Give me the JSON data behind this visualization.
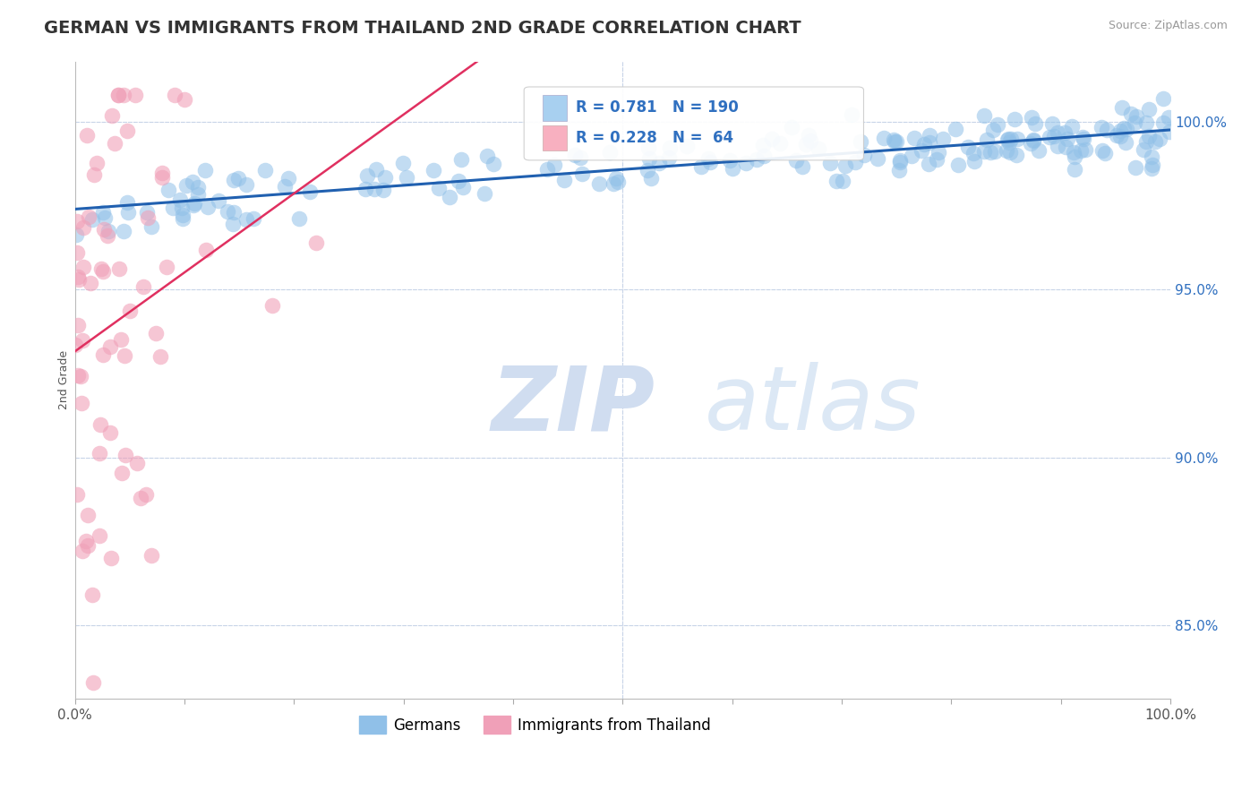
{
  "title": "GERMAN VS IMMIGRANTS FROM THAILAND 2ND GRADE CORRELATION CHART",
  "source": "Source: ZipAtlas.com",
  "ylabel": "2nd Grade",
  "watermark_zip": "ZIP",
  "watermark_atlas": "atlas",
  "xlim": [
    0.0,
    1.0
  ],
  "ylim": [
    0.828,
    1.018
  ],
  "yticks": [
    0.85,
    0.9,
    0.95,
    1.0
  ],
  "ytick_labels": [
    "85.0%",
    "90.0%",
    "95.0%",
    "100.0%"
  ],
  "legend_entries": [
    {
      "label": "Germans",
      "R": 0.781,
      "N": 190
    },
    {
      "label": "Immigrants from Thailand",
      "R": 0.228,
      "N": 64
    }
  ],
  "blue_scatter_color": "#90c0e8",
  "pink_scatter_color": "#f0a0b8",
  "blue_line_color": "#2060b0",
  "pink_line_color": "#e03060",
  "blue_legend_color": "#a8d0f0",
  "pink_legend_color": "#f8b0c0",
  "background_color": "#ffffff",
  "grid_color": "#c8d4e8",
  "title_fontsize": 14,
  "legend_R_color": "#3070c0",
  "watermark_zip_color": "#d0ddf0",
  "watermark_atlas_color": "#dce8f5"
}
